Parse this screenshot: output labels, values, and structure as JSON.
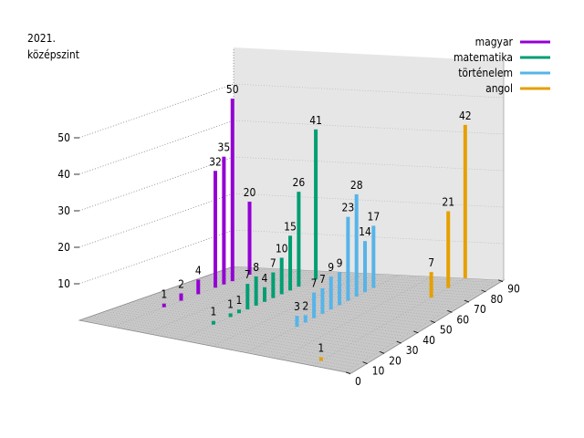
{
  "chart_data": {
    "type": "bar",
    "subtype": "3d-bar",
    "title": "2021.\nközépszint",
    "title_lines": [
      "2021.",
      "középszint"
    ],
    "xlabel": "",
    "ylabel": "",
    "zlabel": "",
    "x_ticks": [
      0,
      10,
      20,
      30,
      40,
      50,
      60,
      70,
      80,
      90
    ],
    "z_ticks": [
      10,
      20,
      30,
      40,
      50
    ],
    "x_range": [
      0,
      90
    ],
    "z_range": [
      0,
      60
    ],
    "grid": true,
    "legend_position": "top-right",
    "series": [
      {
        "name": "magyar",
        "color": "#9400d3",
        "points": [
          {
            "x": 30,
            "y": 1
          },
          {
            "x": 40,
            "y": 2
          },
          {
            "x": 50,
            "y": 4
          },
          {
            "x": 60,
            "y": 32
          },
          {
            "x": 65,
            "y": 35
          },
          {
            "x": 70,
            "y": 50
          },
          {
            "x": 80,
            "y": 20
          }
        ]
      },
      {
        "name": "matematika",
        "color": "#009e73",
        "points": [
          {
            "x": 20,
            "y": 1
          },
          {
            "x": 30,
            "y": 1
          },
          {
            "x": 35,
            "y": 1
          },
          {
            "x": 40,
            "y": 7
          },
          {
            "x": 45,
            "y": 8
          },
          {
            "x": 50,
            "y": 4
          },
          {
            "x": 55,
            "y": 7
          },
          {
            "x": 60,
            "y": 10
          },
          {
            "x": 65,
            "y": 15
          },
          {
            "x": 70,
            "y": 26
          },
          {
            "x": 80,
            "y": 41
          }
        ]
      },
      {
        "name": "történelem",
        "color": "#56b4e9",
        "points": [
          {
            "x": 30,
            "y": 3
          },
          {
            "x": 35,
            "y": 2
          },
          {
            "x": 40,
            "y": 7
          },
          {
            "x": 45,
            "y": 7
          },
          {
            "x": 50,
            "y": 9
          },
          {
            "x": 55,
            "y": 9
          },
          {
            "x": 60,
            "y": 23
          },
          {
            "x": 65,
            "y": 28
          },
          {
            "x": 70,
            "y": 14
          },
          {
            "x": 75,
            "y": 17
          }
        ]
      },
      {
        "name": "angol",
        "color": "#e69f00",
        "points": [
          {
            "x": 5,
            "y": 1
          },
          {
            "x": 70,
            "y": 7
          },
          {
            "x": 80,
            "y": 21
          },
          {
            "x": 90,
            "y": 42
          }
        ]
      }
    ]
  }
}
